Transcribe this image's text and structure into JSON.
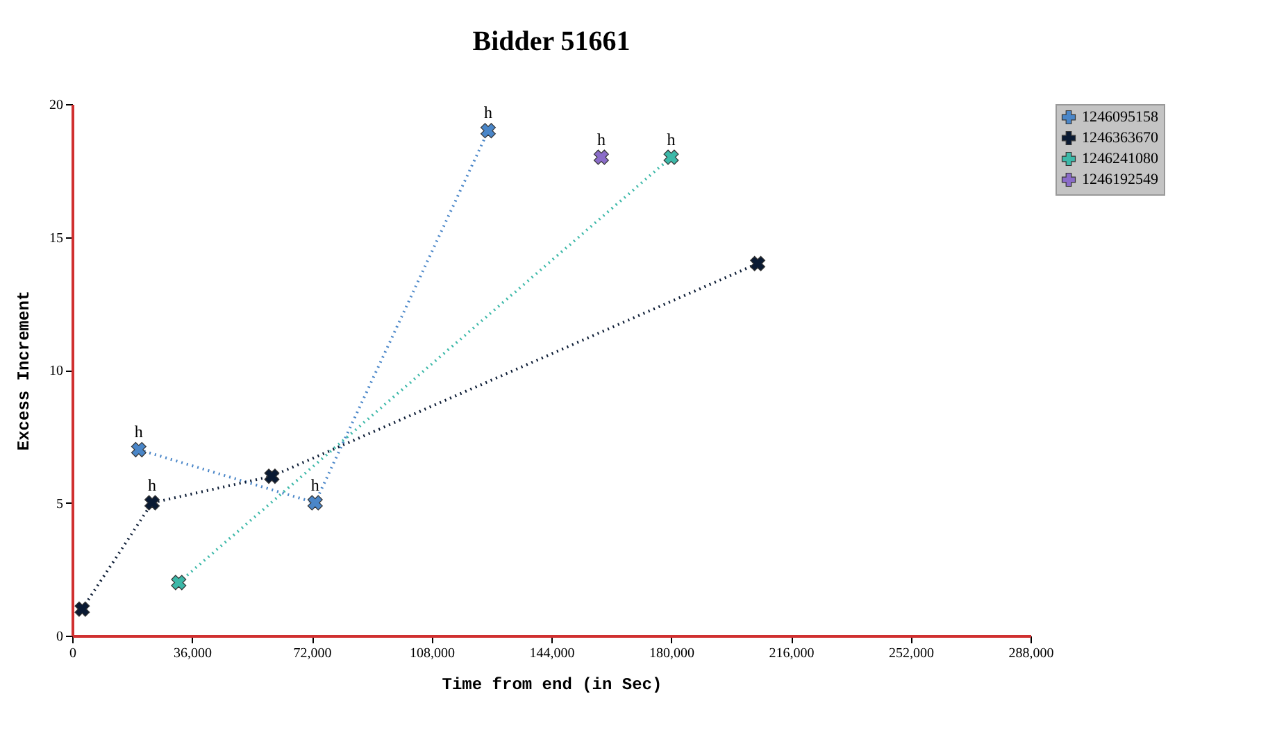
{
  "chart_data": {
    "type": "line",
    "title": "Bidder 51661",
    "xlabel": "Time from end (in Sec)",
    "ylabel": "Excess Increment",
    "xlim": [
      0,
      288000
    ],
    "xticks": [
      0,
      {
        "value": 36000,
        "label": "36,000"
      },
      {
        "value": 72000,
        "label": "72,000"
      },
      {
        "value": 108000,
        "label": "108,000"
      },
      {
        "value": 144000,
        "label": "144,000"
      },
      {
        "value": 180000,
        "label": "180,000"
      },
      {
        "value": 216000,
        "label": "216,000"
      },
      {
        "value": 252000,
        "label": "252,000"
      },
      {
        "value": 288000,
        "label": "288,000"
      }
    ],
    "ylim": [
      0,
      20
    ],
    "yticks": [
      0,
      5,
      10,
      15,
      20
    ],
    "grid": false,
    "legend": "right",
    "marker": "cross",
    "line_style": "dotted",
    "series": [
      {
        "name": "1246095158",
        "color": "#4a86c8",
        "x": [
          20000,
          73000,
          125000
        ],
        "values": [
          7,
          5,
          19
        ]
      },
      {
        "name": "1246363670",
        "color": "#0a1a33",
        "x": [
          3000,
          24000,
          60000,
          206000
        ],
        "values": [
          1,
          5,
          6,
          14
        ]
      },
      {
        "name": "1246241080",
        "color": "#3cb8a8",
        "x": [
          32000,
          180000
        ],
        "values": [
          2,
          18
        ]
      },
      {
        "name": "1246192549",
        "color": "#8a6cc8",
        "x": [
          159000
        ],
        "values": [
          18
        ]
      }
    ],
    "annotations": [
      {
        "text": "h",
        "x": 20000,
        "y": 7
      },
      {
        "text": "h",
        "x": 73000,
        "y": 5
      },
      {
        "text": "h",
        "x": 125000,
        "y": 19
      },
      {
        "text": "h",
        "x": 24000,
        "y": 5
      },
      {
        "text": "h",
        "x": 159000,
        "y": 18
      },
      {
        "text": "h",
        "x": 180000,
        "y": 18
      }
    ]
  }
}
